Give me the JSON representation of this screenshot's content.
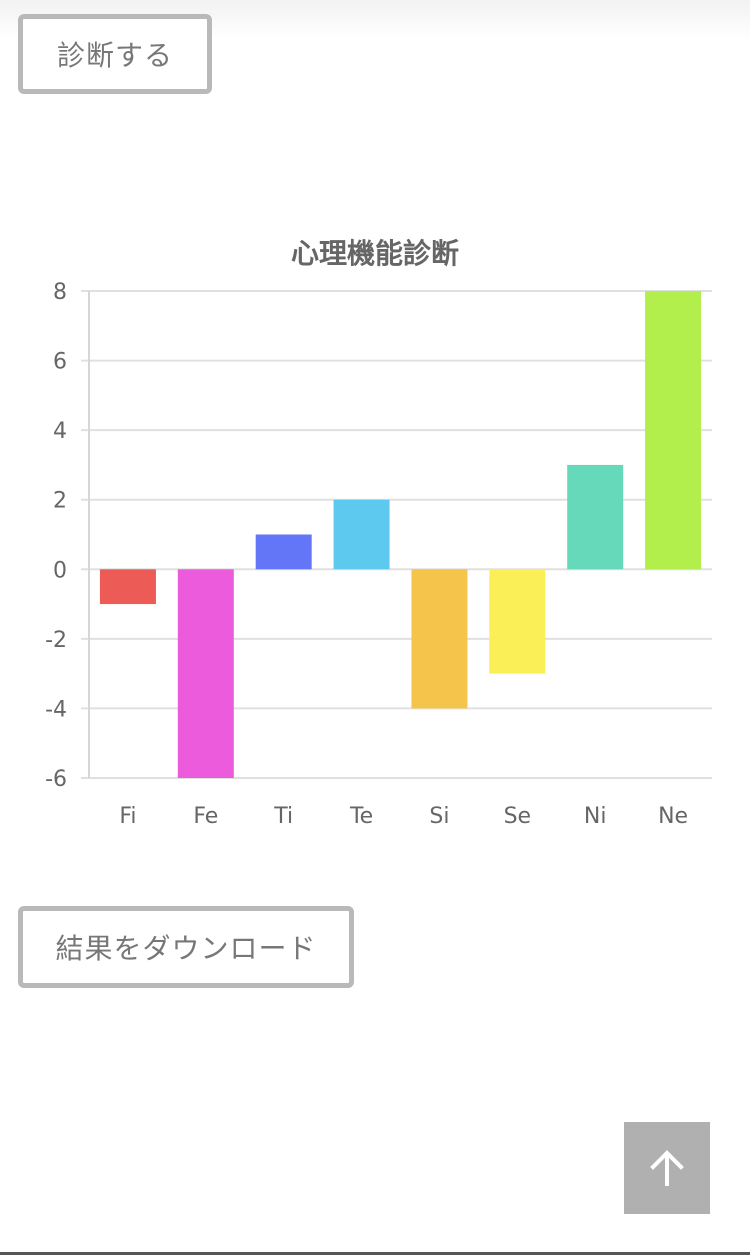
{
  "buttons": {
    "diagnose_label": "診断する",
    "download_label": "結果をダウンロード"
  },
  "back_to_top_icon": "arrow-up-icon",
  "chart_data": {
    "type": "bar",
    "title": "心理機能診断",
    "categories": [
      "Fi",
      "Fe",
      "Ti",
      "Te",
      "Si",
      "Se",
      "Ni",
      "Ne"
    ],
    "values": [
      -1,
      -6,
      1,
      2,
      -4,
      -3,
      3,
      8
    ],
    "colors": [
      "#ec5b55",
      "#ec5bdc",
      "#6376f7",
      "#5ec9ee",
      "#f5c44a",
      "#fbef57",
      "#65d9ba",
      "#b2ef4c"
    ],
    "ylim": [
      -6,
      8
    ],
    "yticks": [
      "8",
      "6",
      "4",
      "2",
      "0",
      "-2",
      "-4",
      "-6"
    ],
    "grid": true,
    "legend": "none"
  }
}
